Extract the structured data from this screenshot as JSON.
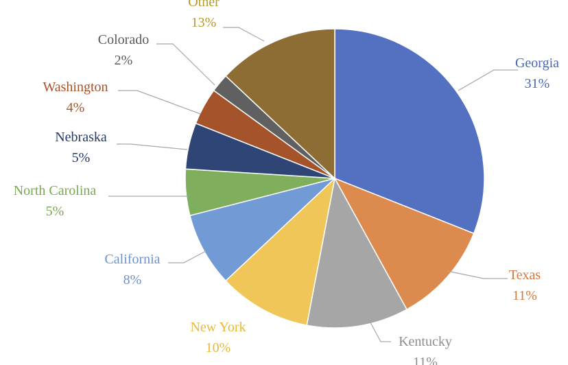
{
  "chart_data": {
    "type": "pie",
    "title": "",
    "start_angle_deg": 0,
    "direction": "clockwise",
    "slices": [
      {
        "label": "Georgia",
        "value": 31,
        "value_label": "31%",
        "color": "#5470C0"
      },
      {
        "label": "Texas",
        "value": 11,
        "value_label": "11%",
        "color": "#DC8A4E"
      },
      {
        "label": "Kentucky",
        "value": 11,
        "value_label": "11%",
        "color": "#A6A6A6"
      },
      {
        "label": "New York",
        "value": 10,
        "value_label": "10%",
        "color": "#F0C659"
      },
      {
        "label": "California",
        "value": 8,
        "value_label": "8%",
        "color": "#729BD5"
      },
      {
        "label": "North Carolina",
        "value": 5,
        "value_label": "5%",
        "color": "#7FAF5C"
      },
      {
        "label": "Nebraska",
        "value": 5,
        "value_label": "5%",
        "color": "#2E4575"
      },
      {
        "label": "Washington",
        "value": 4,
        "value_label": "4%",
        "color": "#A5532A"
      },
      {
        "label": "Colorado",
        "value": 2,
        "value_label": "2%",
        "color": "#606060"
      },
      {
        "label": "Other",
        "value": 13,
        "value_label": "13%",
        "color": "#8D6D34"
      }
    ],
    "label_colors": {
      "Georgia": "#4A67B5",
      "Texas": "#D5783A",
      "Kentucky": "#8C8C8C",
      "New York": "#E8B935",
      "California": "#6A93CF",
      "North Carolina": "#79A852",
      "Nebraska": "#233A6B",
      "Washington": "#A5532A",
      "Colorado": "#5A5A5A",
      "Other": "#B39A2E"
    }
  }
}
